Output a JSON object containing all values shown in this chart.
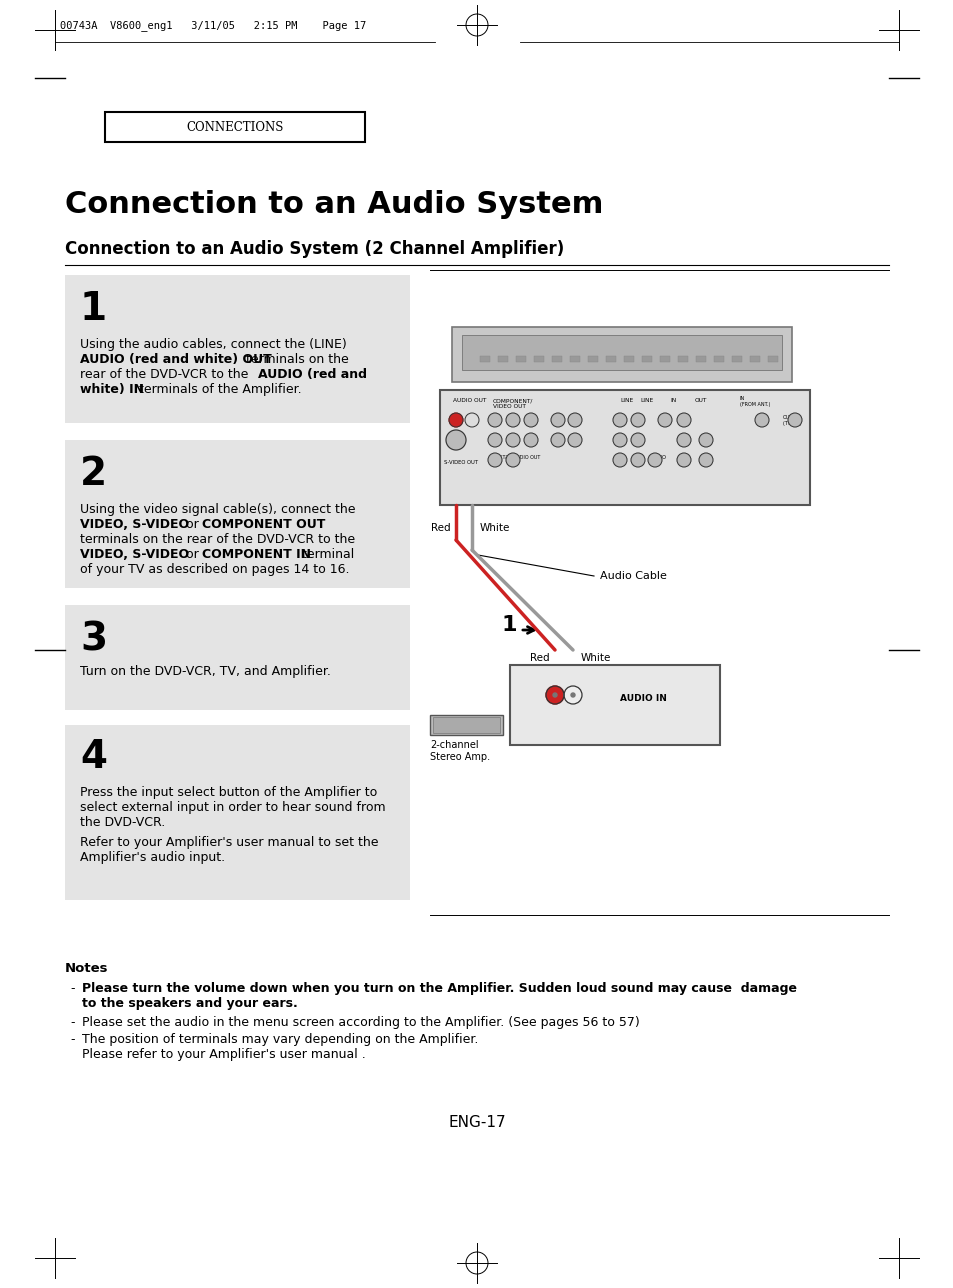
{
  "page_header": "00743A  V8600_eng1   3/11/05   2:15 PM    Page 17",
  "section_label": "CONNECTIONS",
  "main_title": "Connection to an Audio System",
  "subtitle": "Connection to an Audio System (2 Channel Amplifier)",
  "step1_num": "1",
  "step2_num": "2",
  "step3_num": "3",
  "step4_num": "4",
  "step1_line1": "Using the audio cables, connect the (LINE)",
  "step1_line2a": "AUDIO (red and white) OUT",
  "step1_line2b": " terminals on the",
  "step1_line3a": "rear of the DVD-VCR to the ",
  "step1_line3b": "AUDIO (red and",
  "step1_line4a": "white) IN",
  "step1_line4b": " terminals of the Amplifier.",
  "step2_line1": "Using the video signal cable(s), connect the",
  "step2_line2a": "VIDEO, S-VIDEO",
  "step2_line2b": " or ",
  "step2_line2c": "COMPONENT OUT",
  "step2_line3": "terminals on the rear of the DVD-VCR to the",
  "step2_line4a": "VIDEO, S-VIDEO",
  "step2_line4b": " or ",
  "step2_line4c": "COMPONENT IN",
  "step2_line4d": " terminal",
  "step2_line5": "of your TV as described on pages 14 to 16.",
  "step3_line1": "Turn on the DVD-VCR, TV, and Amplifier.",
  "step4_line1": "Press the input select button of the Amplifier to",
  "step4_line2": "select external input in order to hear sound from",
  "step4_line3": "the DVD-VCR.",
  "step4_line4": "Refer to your Amplifier's user manual to set the",
  "step4_line5": "Amplifier's audio input.",
  "notes_title": "Notes",
  "note1_dash": "-",
  "note1_bold": "Please turn the volume down when you turn on the Amplifier. Sudden loud sound may cause  damage",
  "note1_bold2": "to the speakers and your ears.",
  "note2_dash": "-",
  "note2": "Please set the audio in the menu screen according to the Amplifier. (See pages 56 to 57)",
  "note3_dash": "-",
  "note3a": "The position of terminals may vary depending on the Amplifier.",
  "note3b": "Please refer to your Amplifier's user manual .",
  "page_num": "ENG-17",
  "bg_color": "#ffffff",
  "step_bg_color": "#e4e4e4",
  "text_color": "#000000",
  "diagram_line_color": "#555555",
  "red_label": "Red",
  "white_label": "White",
  "audio_cable_label": "Audio Cable",
  "audio_in_label": "AUDIO IN",
  "ch2_label1": "2-channel",
  "ch2_label2": "Stereo Amp."
}
